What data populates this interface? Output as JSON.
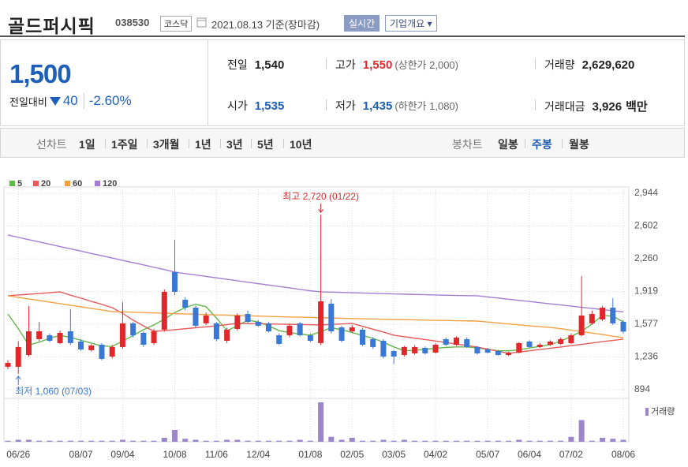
{
  "header": {
    "title": "골드퍼시픽",
    "code": "038530",
    "market": "코스닥",
    "date": "2021.08.13 기준(장마감)",
    "realtime": "실시간",
    "company": "기업개요"
  },
  "quote": {
    "price": "1,500",
    "change_label": "전일대비",
    "change": "40",
    "change_rate": "-2.60%",
    "stats": [
      {
        "label": "전일",
        "value": "1,540"
      },
      {
        "label": "고가",
        "value": "1,550",
        "note": "(상한가 2,000)"
      },
      {
        "label": "거래량",
        "value": "2,629,620"
      },
      {
        "label": "시가",
        "value": "1,535"
      },
      {
        "label": "저가",
        "value": "1,435",
        "note": "(하한가 1,080)"
      },
      {
        "label": "거래대금",
        "value": "3,926",
        "unit": "백만"
      }
    ]
  },
  "tabs": {
    "line_label": "선차트",
    "line": [
      "1일",
      "1주일",
      "3개월",
      "1년",
      "3년",
      "5년",
      "10년"
    ],
    "candle_label": "봉차트",
    "candle": [
      "일봉",
      "주봉",
      "월봉"
    ],
    "active_candle": 1
  },
  "chart_data": {
    "type": "candlestick",
    "categories": [
      null,
      "06/26",
      null,
      null,
      null,
      null,
      null,
      "08/07",
      null,
      null,
      null,
      "09/04",
      null,
      null,
      null,
      null,
      "10/08",
      null,
      null,
      null,
      "11/06",
      null,
      null,
      null,
      "12/04",
      null,
      null,
      null,
      null,
      "01/08",
      null,
      null,
      null,
      "02/05",
      null,
      null,
      null,
      "03/05",
      null,
      null,
      null,
      "04/02",
      null,
      null,
      null,
      null,
      "05/07",
      null,
      null,
      null,
      "06/04",
      null,
      null,
      null,
      "07/02",
      null,
      null,
      null,
      null,
      "08/06"
    ],
    "ohlc": {
      "up_color": "#e0282c",
      "down_color": "#3a78d6",
      "open": [
        1133,
        1133,
        1256,
        1421,
        1462,
        1380,
        1503,
        1396,
        1306,
        1363,
        1240,
        1339,
        1586,
        1487,
        1380,
        1520,
        2121,
        1832,
        1750,
        1586,
        1586,
        1404,
        1528,
        1684,
        1602,
        1586,
        1462,
        1462,
        1586,
        1462,
        1380,
        1791,
        1544,
        1503,
        1520,
        1421,
        1404,
        1297,
        1256,
        1273,
        1330,
        1281,
        1421,
        1363,
        1421,
        1339,
        1314,
        1297,
        1256,
        1281,
        1396,
        1339,
        1363,
        1372,
        1380,
        1462,
        1586,
        1627,
        1750,
        1602
      ],
      "high": [
        1200,
        1400,
        1767,
        1600,
        1480,
        1510,
        1734,
        1420,
        1370,
        1380,
        1360,
        1808,
        1600,
        1500,
        1530,
        1940,
        2458,
        1860,
        1770,
        1700,
        1600,
        1540,
        1690,
        1720,
        1620,
        1600,
        1480,
        1580,
        1600,
        1480,
        2720,
        1840,
        1560,
        1570,
        1540,
        1440,
        1420,
        1310,
        1350,
        1360,
        1345,
        1380,
        1440,
        1450,
        1440,
        1350,
        1330,
        1310,
        1290,
        1390,
        1410,
        1380,
        1410,
        1440,
        1480,
        2080,
        1720,
        1770,
        1849,
        1620
      ],
      "low": [
        1110,
        1060,
        1240,
        1400,
        1390,
        1370,
        1360,
        1300,
        1290,
        1200,
        1220,
        1320,
        1440,
        1340,
        1360,
        1500,
        1880,
        1720,
        1540,
        1570,
        1400,
        1380,
        1510,
        1590,
        1550,
        1490,
        1360,
        1440,
        1450,
        1390,
        1360,
        1480,
        1390,
        1490,
        1350,
        1320,
        1220,
        1160,
        1240,
        1260,
        1260,
        1270,
        1350,
        1350,
        1330,
        1260,
        1270,
        1250,
        1245,
        1270,
        1330,
        1330,
        1350,
        1360,
        1370,
        1450,
        1570,
        1610,
        1570,
        1480
      ],
      "close": [
        1174,
        1339,
        1503,
        1503,
        1404,
        1487,
        1380,
        1314,
        1355,
        1215,
        1339,
        1586,
        1462,
        1363,
        1503,
        1915,
        1915,
        1750,
        1561,
        1668,
        1421,
        1520,
        1668,
        1602,
        1561,
        1503,
        1372,
        1561,
        1462,
        1404,
        1816,
        1503,
        1404,
        1544,
        1363,
        1339,
        1240,
        1240,
        1339,
        1339,
        1273,
        1363,
        1363,
        1437,
        1339,
        1273,
        1281,
        1256,
        1281,
        1380,
        1339,
        1363,
        1396,
        1421,
        1462,
        1668,
        1684,
        1750,
        1586,
        1500
      ]
    },
    "series": [
      {
        "name": "5",
        "color": "#62b84a",
        "values": [
          1684,
          1530,
          1360,
          1390,
          1430,
          1460,
          1440,
          1410,
          1380,
          1350,
          1345,
          1400,
          1460,
          1520,
          1570,
          1630,
          1700,
          1750,
          1785,
          1760,
          1640,
          1510,
          1560,
          1620,
          1600,
          1560,
          1510,
          1490,
          1475,
          1462,
          1500,
          1540,
          1520,
          1490,
          1460,
          1430,
          1390,
          1340,
          1300,
          1305,
          1315,
          1325,
          1335,
          1340,
          1340,
          1330,
          1315,
          1300,
          1300,
          1310,
          1330,
          1345,
          1363,
          1400,
          1450,
          1503,
          1580,
          1670,
          1660,
          1602
        ]
      },
      {
        "name": "20",
        "color": "#e85a5a",
        "values": [
          1874,
          1882,
          1890,
          1898,
          1906,
          1915,
          1880,
          1850,
          1815,
          1785,
          1750,
          1690,
          1620,
          1560,
          1503,
          1510,
          1520,
          1530,
          1540,
          1550,
          1560,
          1573,
          1586,
          1584,
          1582,
          1580,
          1578,
          1576,
          1574,
          1572,
          1570,
          1575,
          1580,
          1586,
          1555,
          1525,
          1495,
          1462,
          1447,
          1432,
          1417,
          1402,
          1387,
          1370,
          1355,
          1339,
          1317,
          1295,
          1273,
          1286,
          1300,
          1313,
          1326,
          1339,
          1353,
          1367,
          1381,
          1395,
          1408,
          1421
        ]
      },
      {
        "name": "60",
        "color": "#f3a144",
        "values": [
          1874,
          1858,
          1841,
          1825,
          1808,
          1792,
          1775,
          1759,
          1742,
          1726,
          1709,
          1706,
          1702,
          1699,
          1695,
          1692,
          1688,
          1685,
          1681,
          1678,
          1674,
          1671,
          1668,
          1665,
          1662,
          1659,
          1656,
          1653,
          1651,
          1648,
          1645,
          1642,
          1639,
          1636,
          1634,
          1631,
          1629,
          1627,
          1625,
          1623,
          1620,
          1618,
          1616,
          1614,
          1612,
          1610,
          1600,
          1590,
          1580,
          1570,
          1560,
          1552,
          1544,
          1530,
          1515,
          1500,
          1485,
          1470,
          1452,
          1437
        ]
      },
      {
        "name": "120",
        "color": "#a57dd3",
        "values": [
          2508,
          2484,
          2460,
          2436,
          2412,
          2388,
          2364,
          2340,
          2316,
          2292,
          2268,
          2244,
          2220,
          2196,
          2172,
          2148,
          2121,
          2106,
          2091,
          2076,
          2061,
          2046,
          2031,
          2016,
          2001,
          1986,
          1971,
          1956,
          1941,
          1926,
          1915,
          1912,
          1909,
          1906,
          1903,
          1900,
          1897,
          1894,
          1891,
          1888,
          1885,
          1882,
          1879,
          1877,
          1875,
          1874,
          1862,
          1850,
          1838,
          1826,
          1814,
          1802,
          1790,
          1778,
          1766,
          1754,
          1742,
          1730,
          1718,
          1706
        ]
      }
    ],
    "volume": {
      "name": "거래량",
      "color": "#9b86c9",
      "values": [
        1,
        2,
        2,
        1,
        1,
        1,
        1,
        1,
        1,
        1,
        1,
        2,
        1,
        1,
        1,
        4,
        12,
        3,
        2,
        1,
        1,
        2,
        2,
        1,
        1,
        1,
        1,
        1,
        2,
        1,
        40,
        5,
        2,
        4,
        1,
        1,
        2,
        1,
        2,
        1,
        1,
        1,
        1,
        1,
        1,
        1,
        1,
        1,
        1,
        2,
        1,
        1,
        1,
        1,
        5,
        22,
        1,
        4,
        3,
        2
      ]
    },
    "annotations": [
      {
        "text": "최고 2,720 (01/22)",
        "color": "#e0282c"
      },
      {
        "text": "최저 1,060 (07/03)",
        "color": "#3a78d6"
      }
    ],
    "ylim": [
      803,
      3010
    ],
    "yticks": [
      894,
      {
        "value": 1236,
        "label": "1,236"
      },
      {
        "value": 1577,
        "label": "1,577"
      },
      {
        "value": 1919,
        "label": "1,919"
      },
      {
        "value": 2260,
        "label": "2,260"
      },
      {
        "value": 2602,
        "label": "2,602"
      },
      {
        "value": 2944,
        "label": "2,944"
      }
    ],
    "grid": true
  }
}
